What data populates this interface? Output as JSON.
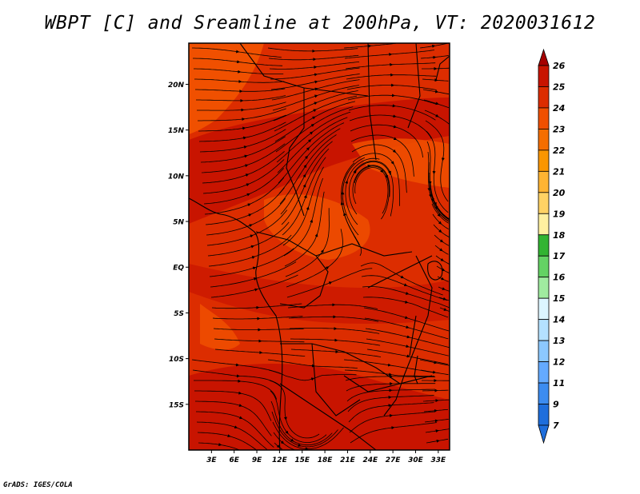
{
  "title": "WBPT [C] and Sreamline at 200hPa, VT: 2020031612",
  "credit": "GrADS: IGES/COLA",
  "map": {
    "variable": "WBPT [C]",
    "level": "200hPa",
    "valid_time": "2020031612",
    "lat_labels": [
      "20N",
      "15N",
      "10N",
      "5N",
      "EQ",
      "5S",
      "10S",
      "15S"
    ],
    "lon_labels": [
      "3E",
      "6E",
      "9E",
      "12E",
      "15E",
      "18E",
      "21E",
      "24E",
      "27E",
      "30E",
      "33E"
    ],
    "lat_range": [
      -20,
      24.5
    ],
    "lon_range": [
      0,
      34.5
    ]
  },
  "colorbar": {
    "levels": [
      "26",
      "25",
      "24",
      "23",
      "22",
      "21",
      "20",
      "19",
      "18",
      "17",
      "16",
      "15",
      "14",
      "13",
      "12",
      "11",
      "9",
      "7"
    ],
    "colors": [
      "#a50000",
      "#c81400",
      "#dc2d00",
      "#f05000",
      "#f56e00",
      "#fa9600",
      "#ffb432",
      "#ffd264",
      "#fff0a0",
      "#32b432",
      "#64d264",
      "#a0eba0",
      "#dcf5ff",
      "#b4e1ff",
      "#8cc8ff",
      "#64aaff",
      "#3c8cf0",
      "#1e6edc"
    ]
  }
}
